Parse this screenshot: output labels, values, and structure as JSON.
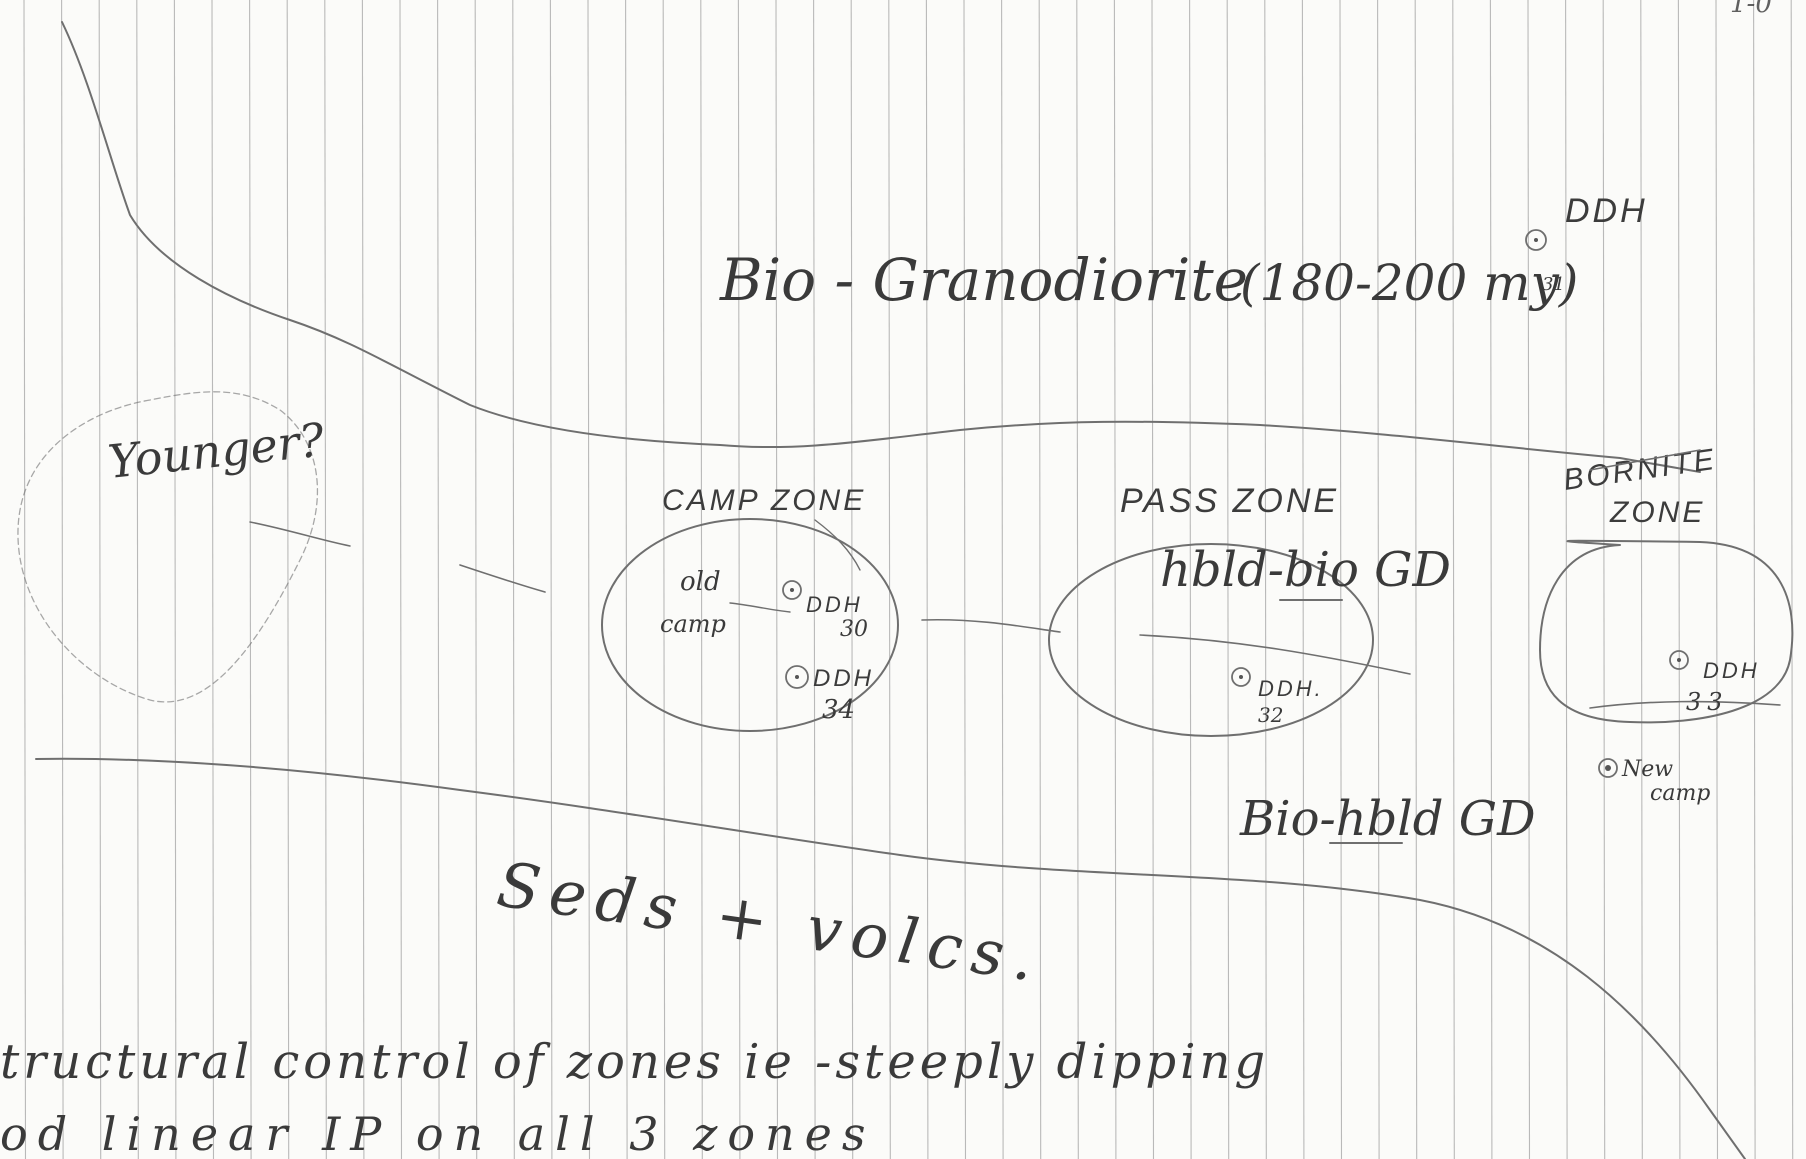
{
  "page_corner": "1-0",
  "units": {
    "bio_granodiorite": "Bio - Granodiorite",
    "age": "(180-200 my)",
    "younger": "Younger?",
    "seds_volcs": "Seds + volcs.",
    "hbld_bio_gd": "hbld-bio GD",
    "bio_hbld_gd": "Bio-hbld GD"
  },
  "zones": {
    "camp": "CAMP ZONE",
    "pass": "PASS ZONE",
    "bornite_line1": "BORNITE",
    "bornite_line2": "ZONE"
  },
  "labels": {
    "old": "old",
    "camp": "camp",
    "new_camp_line1": "New",
    "new_camp_line2": "camp"
  },
  "drill_holes": [
    {
      "label": "DDH",
      "number": "31"
    },
    {
      "label": "DDH",
      "number": "30"
    },
    {
      "label": "DDH",
      "number": "34"
    },
    {
      "label": "DDH.",
      "number": "32"
    },
    {
      "label": "DDH",
      "number": "33"
    }
  ],
  "notes": {
    "line1": "tructural control of zones ie -steeply dipping",
    "line2": "od linear IP on all 3 zones"
  },
  "colors": {
    "paper": "#fbfbf9",
    "rule_line": "#b9b9b9",
    "pencil": "#6f6f6f",
    "ink": "#3a3a3a"
  }
}
